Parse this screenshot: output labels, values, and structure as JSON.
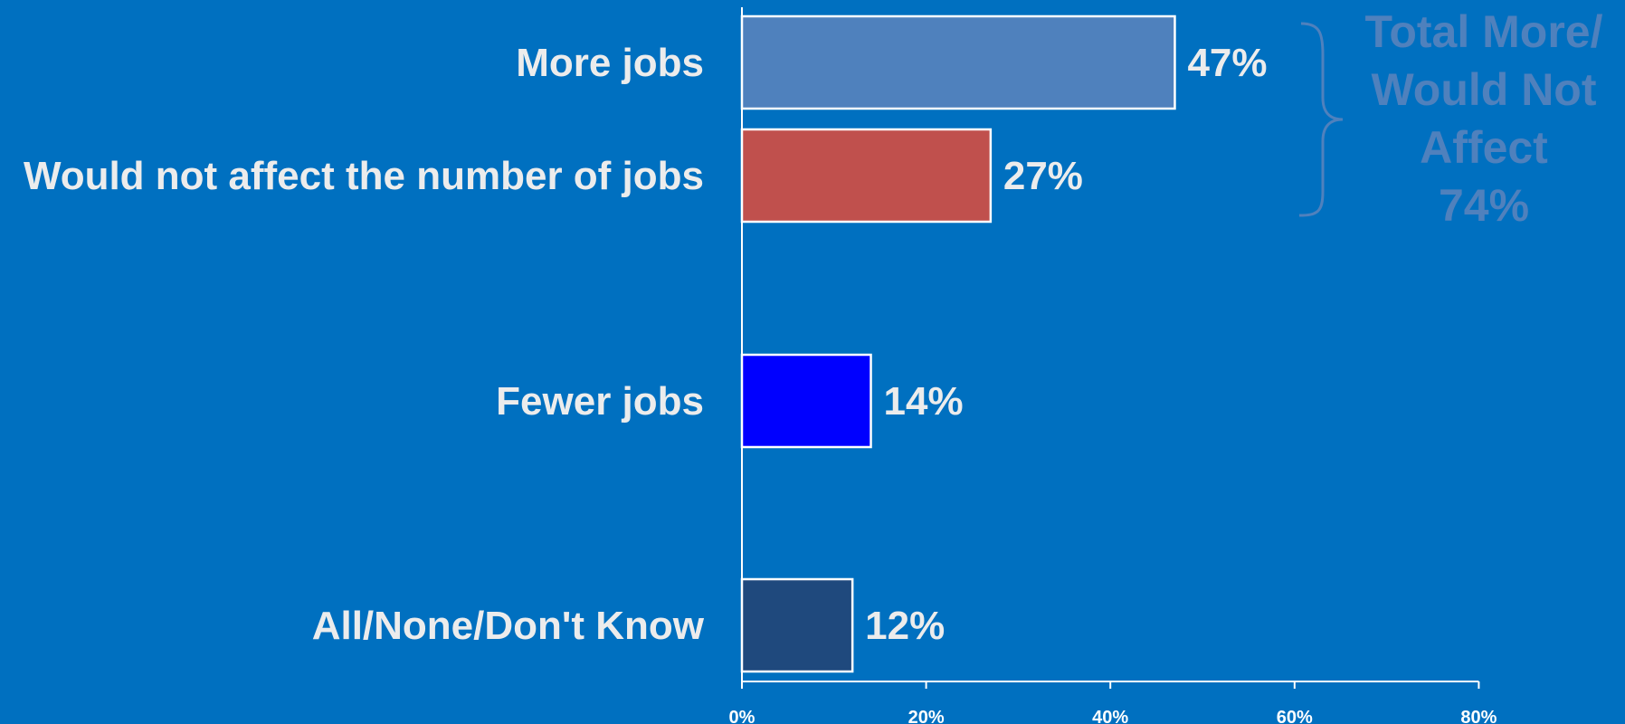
{
  "chart_data": {
    "type": "bar",
    "orientation": "horizontal",
    "categories": [
      "More jobs",
      "Would not affect the number of jobs",
      "Fewer jobs",
      "All/None/Don't Know"
    ],
    "values": [
      47,
      27,
      14,
      12
    ],
    "value_labels": [
      "47%",
      "27%",
      "14%",
      "12%"
    ],
    "bar_colors": [
      "#4F81BD",
      "#C0504D",
      "#0000FF",
      "#1F497D"
    ],
    "xlim": [
      0,
      80
    ],
    "x_ticks": [
      0,
      20,
      40,
      60,
      80
    ],
    "x_tick_labels": [
      "0%",
      "20%",
      "40%",
      "60%",
      "80%"
    ],
    "grid": false,
    "annotation": {
      "text_lines": [
        "Total More/",
        "Would Not",
        "Affect",
        "74%"
      ],
      "brace_spans": [
        "More jobs",
        "Would not affect the number of jobs"
      ],
      "color": "#4F81BD"
    }
  },
  "colors": {
    "background": "#0070C0",
    "text": "#ECECEC",
    "axis": "#FFFFFF",
    "bar_outline": "#FFFFFF"
  }
}
